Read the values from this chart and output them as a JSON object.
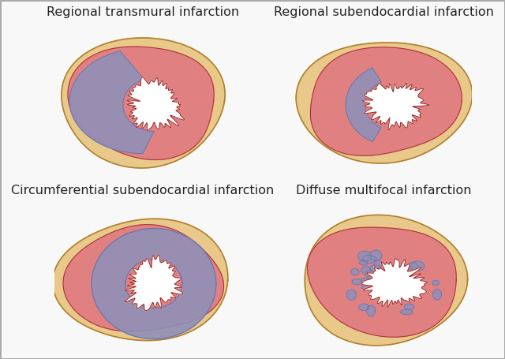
{
  "background_color": "#f8f8f8",
  "labels": [
    "Regional transmural infarction",
    "Regional subendocardial infarction",
    "Circumferential subendocardial infarction",
    "Diffuse multifocal infarction"
  ],
  "label_fontsize": 11.5,
  "outer_color": "#e8c98a",
  "myocardium_color": "#e08080",
  "infarct_color": "#9090b8",
  "cavity_color": "#ffffff",
  "border_color": "#aa3030",
  "outer_border_color": "#b08030",
  "fig_border_color": "#aaaaaa"
}
